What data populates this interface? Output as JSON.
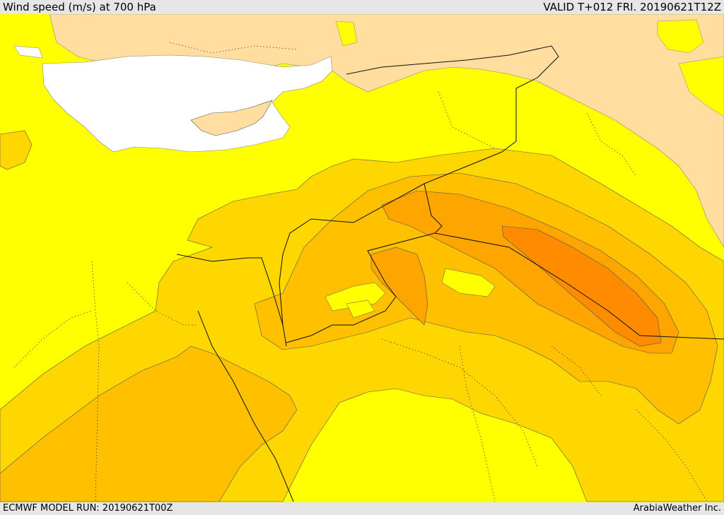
{
  "header": {
    "title": "Wind speed (m/s) at 700 hPa",
    "valid": "VALID T+012 FRI. 20190621T12Z"
  },
  "footer": {
    "model_run": "ECMWF MODEL RUN: 20190621T00Z",
    "credit": "ArabiaWeather Inc."
  },
  "colors": {
    "background_field": "#ffff00",
    "land_low": "#ffdea0",
    "sea_low": "#ffffff",
    "level_1": "#ffd700",
    "level_2": "#ffc000",
    "level_3": "#ffa500",
    "level_4": "#ff8c00",
    "level_5": "#ff7300"
  }
}
